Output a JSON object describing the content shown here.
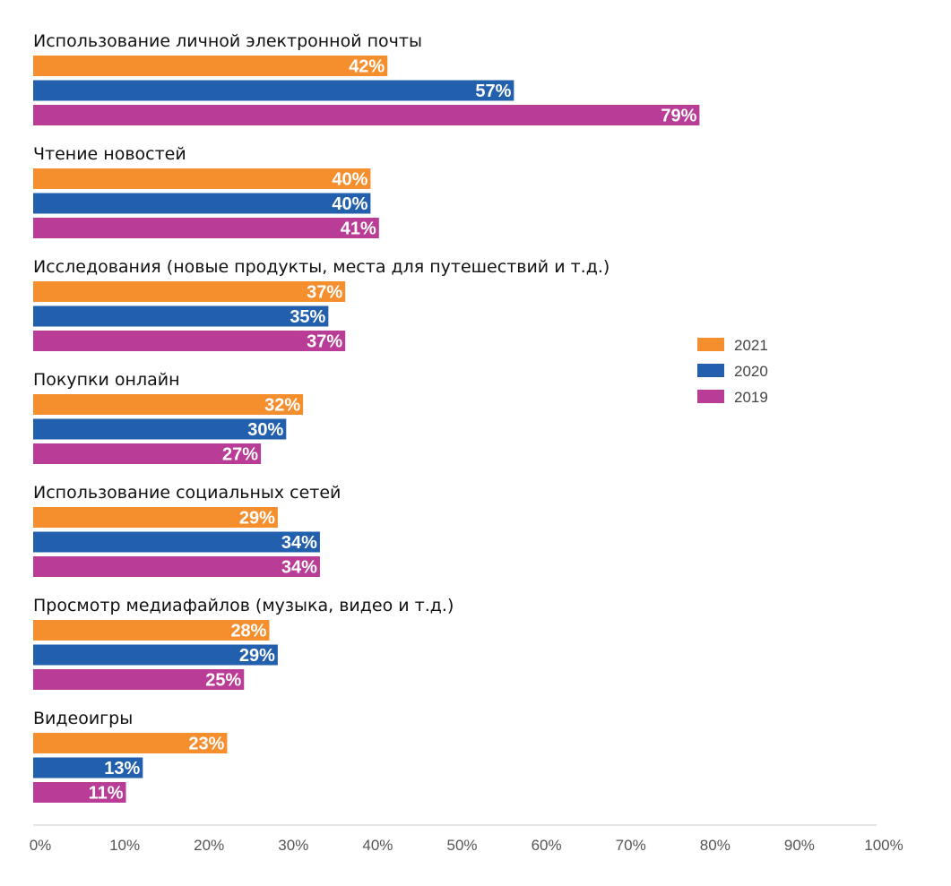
{
  "chart_data": {
    "type": "bar",
    "orientation": "horizontal",
    "categories": [
      "Использование личной электронной почты",
      "Чтение новостей",
      "Исследования (новые продукты, места для путешествий и т.д.)",
      "Покупки онлайн",
      "Использование социальных сетей",
      "Просмотр медиафайлов (музыка, видео и т.д.)",
      "Видеоигры"
    ],
    "series": [
      {
        "name": "2021",
        "color": "#f58f2e",
        "values": [
          42,
          40,
          37,
          32,
          29,
          28,
          23
        ]
      },
      {
        "name": "2020",
        "color": "#2260ad",
        "values": [
          57,
          40,
          35,
          30,
          34,
          29,
          13
        ]
      },
      {
        "name": "2019",
        "color": "#b93c96",
        "values": [
          79,
          41,
          37,
          27,
          34,
          25,
          11
        ]
      }
    ],
    "xlim": [
      0,
      100
    ],
    "x_ticks": [
      "0%",
      "10%",
      "20%",
      "30%",
      "40%",
      "50%",
      "60%",
      "70%",
      "80%",
      "90%",
      "100%"
    ],
    "value_suffix": "%",
    "legend_position": "right",
    "grid": false
  }
}
